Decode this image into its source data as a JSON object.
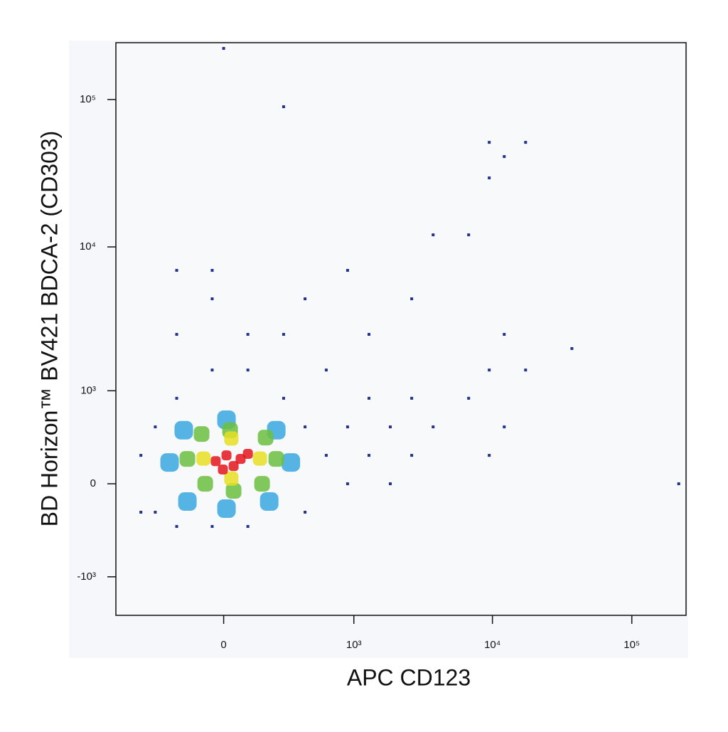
{
  "chart_data": {
    "type": "scatter",
    "x_label": "APC CD123",
    "y_label": "BD Horizon™ BV421 BDCA-2 (CD303)",
    "xscale": "biexponential",
    "yscale": "biexponential",
    "xlim": [
      -680,
      245000
    ],
    "ylim": [
      -1900,
      243000
    ],
    "xticks": [
      0,
      {
        "value": 1000,
        "label": "10³"
      },
      {
        "value": 10000,
        "label": "10⁴"
      },
      {
        "value": 100000,
        "label": "10⁵"
      }
    ],
    "yticks": [
      {
        "value": -1000,
        "label": "-10³"
      },
      0,
      {
        "value": 1000,
        "label": "10³"
      },
      {
        "value": 10000,
        "label": "10⁴"
      },
      {
        "value": 100000,
        "label": "10⁵"
      }
    ],
    "series": [
      {
        "color": "#24318f",
        "x": [
          -433,
          -433,
          -327,
          -202,
          -45,
          97,
          274,
          422,
          422,
          -45,
          97,
          -202,
          -327,
          621,
          899,
          1291,
          1843,
          2631,
          3752,
          1843,
          2631,
          1291,
          899,
          621,
          274,
          97,
          422,
          -45,
          6750,
          9487,
          12154,
          17299,
          9487,
          12154,
          9487,
          12154,
          17299,
          9487,
          6750,
          274,
          0,
          -202,
          899,
          3752,
          37170,
          217120,
          2631,
          1291,
          -202,
          -45
        ],
        "y": [
          227,
          -227,
          500,
          876,
          1421,
          1421,
          876,
          500,
          -227,
          -355,
          -355,
          -355,
          -227,
          227,
          500,
          227,
          500,
          227,
          500,
          0,
          876,
          876,
          0,
          1421,
          2529,
          2529,
          4435,
          4435,
          876,
          1421,
          500,
          1421,
          227,
          2529,
          51233,
          41036,
          51233,
          29403,
          12078,
          89348,
          222255,
          6930,
          6930,
          12078,
          2016,
          0,
          4435,
          2529,
          2529,
          6930
        ]
      },
      {
        "color": "#3aa8e0",
        "x": [
          -240,
          319,
          11,
          11,
          -167,
          232,
          -150,
          195
        ],
        "y": [
          168,
          168,
          582,
          -197,
          464,
          464,
          -139,
          -139
        ]
      },
      {
        "color": "#6cbf3f",
        "x": [
          -150,
          232,
          25,
          39,
          -88,
          177,
          -73,
          160
        ],
        "y": [
          197,
          197,
          464,
          -55,
          425,
          389,
          0,
          0
        ]
      },
      {
        "color": "#e6df22",
        "x": [
          -80,
          150,
          30,
          30
        ],
        "y": [
          200,
          200,
          380,
          40
        ]
      },
      {
        "color": "#e3161c",
        "x": [
          11,
          67,
          -31,
          39,
          97,
          -3
        ],
        "y": [
          227,
          197,
          179,
          139,
          240,
          111
        ]
      }
    ]
  }
}
